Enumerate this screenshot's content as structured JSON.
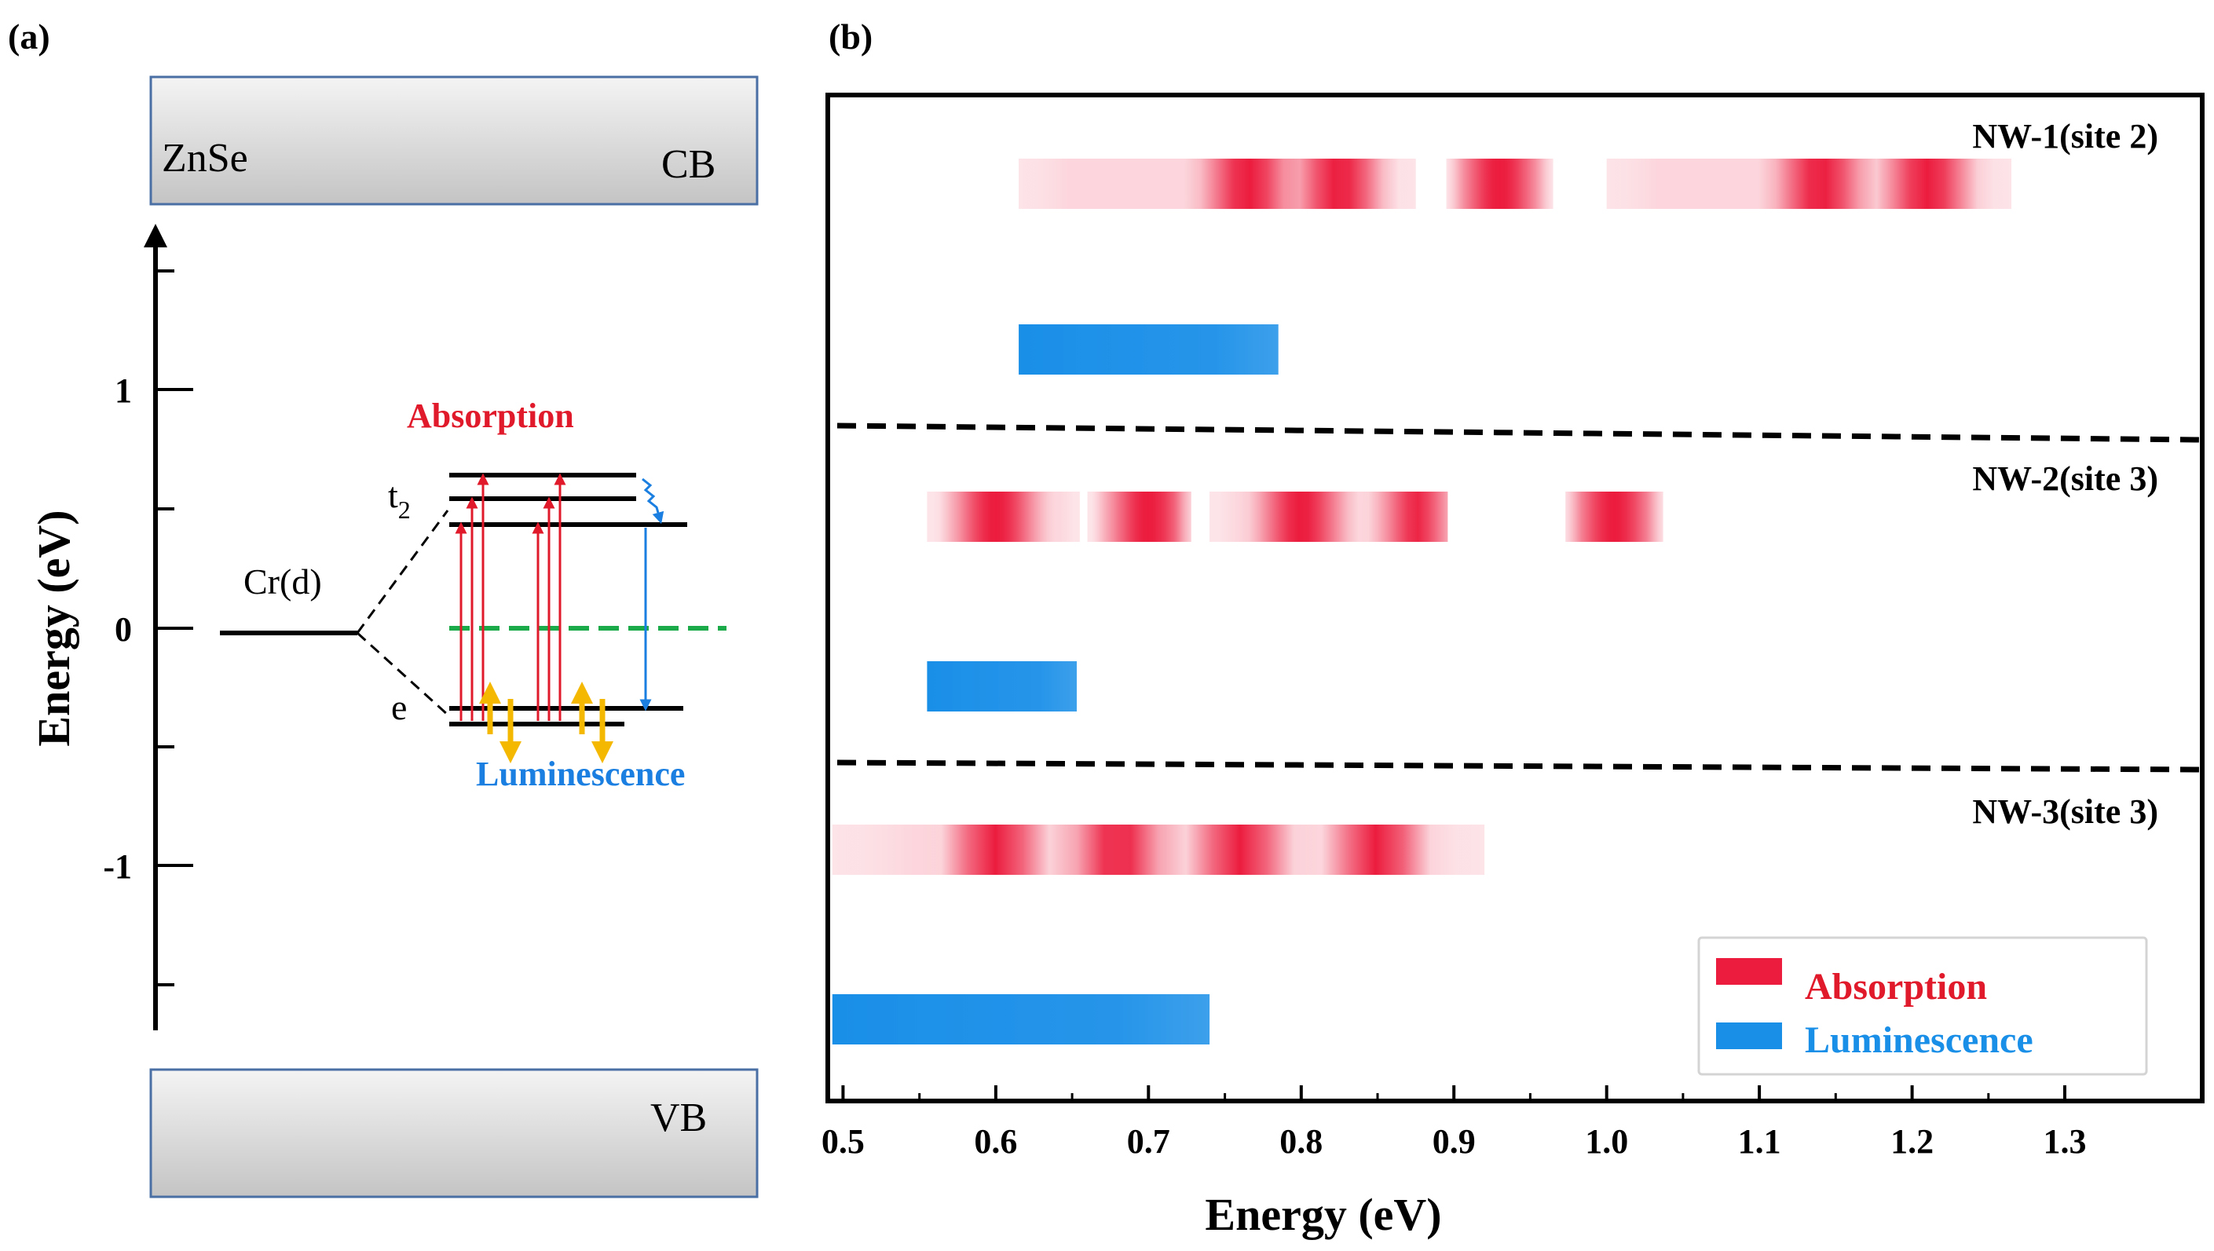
{
  "panel_a": {
    "label": "(a)",
    "host": "ZnSe",
    "cb_label": "CB",
    "vb_label": "VB",
    "ion_label": "Cr(d)",
    "t2_label": "t",
    "t2_sub": "2",
    "e_label": "e",
    "absorption_label": "Absorption",
    "luminescence_label": "Luminescence",
    "y_axis_title": "Energy (eV)",
    "y_ticks": [
      {
        "value": 1,
        "label": "1"
      },
      {
        "value": 0,
        "label": "0"
      },
      {
        "value": -1,
        "label": "-1"
      }
    ],
    "colors": {
      "absorption": "#e01a2a",
      "luminescence": "#1a7fe0",
      "fermi": "#1aaa4a",
      "phonon": "#f5b800"
    }
  },
  "panel_b": {
    "label": "(b)"
  },
  "chart_data": {
    "type": "heatmap",
    "xlabel": "Energy (eV)",
    "xlim": [
      0.49,
      1.39
    ],
    "x_ticks": [
      "0.5",
      "0.6",
      "0.7",
      "0.8",
      "0.9",
      "1.0",
      "1.1",
      "1.2",
      "1.3"
    ],
    "x_tick_values": [
      0.5,
      0.6,
      0.7,
      0.8,
      0.9,
      1.0,
      1.1,
      1.2,
      1.3
    ],
    "legend": {
      "position": "bottom-right",
      "entries": [
        "Absorption",
        "Luminescence"
      ]
    },
    "colors": {
      "absorption": "#ec1c3e",
      "luminescence": "#1a8fe8"
    },
    "rows": [
      {
        "name": "NW-1(site 2)",
        "absorption": [
          [
            0.615,
            0.875
          ],
          [
            0.895,
            0.965
          ],
          [
            1.0,
            1.265
          ]
        ],
        "absorption_peaks": [
          0.765,
          0.825,
          0.93,
          1.14,
          1.21
        ],
        "luminescence": [
          [
            0.615,
            0.785
          ]
        ]
      },
      {
        "name": "NW-2(site 3)",
        "absorption": [
          [
            0.555,
            0.655
          ],
          [
            0.66,
            0.728
          ],
          [
            0.74,
            0.896
          ],
          [
            0.973,
            1.037
          ]
        ],
        "absorption_peaks": [
          0.6,
          0.7,
          0.8,
          0.88,
          1.005
        ],
        "luminescence": [
          [
            0.555,
            0.653
          ]
        ]
      },
      {
        "name": "NW-3(site 3)",
        "absorption": [
          [
            0.493,
            0.92
          ]
        ],
        "absorption_peaks": [
          0.6,
          0.68,
          0.76,
          0.85
        ],
        "luminescence": [
          [
            0.493,
            0.74
          ]
        ]
      }
    ]
  }
}
